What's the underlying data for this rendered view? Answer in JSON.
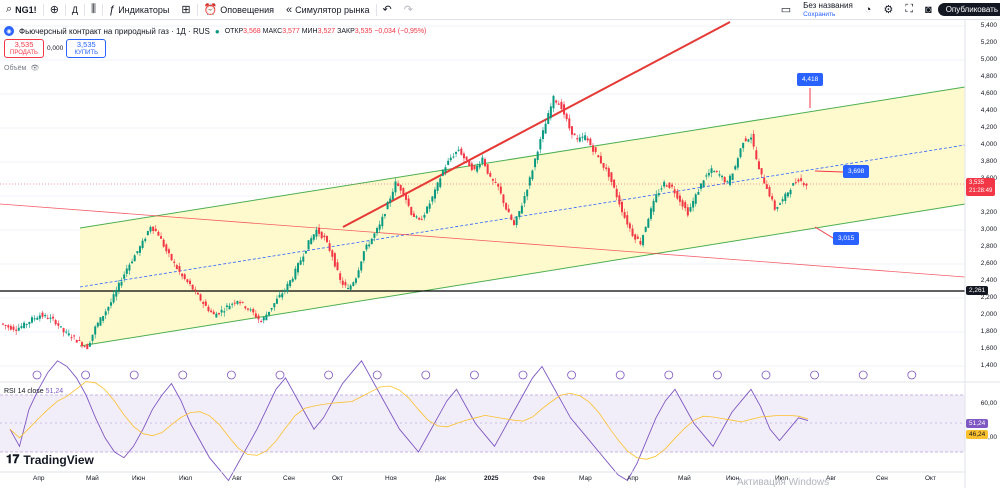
{
  "toolbar": {
    "symbol": "NG1!",
    "add_icon": "plus-circle-icon",
    "timeframe": "Д",
    "indicators": "Индикаторы",
    "alerts": "Оповещения",
    "replay": "Симулятор рынка",
    "save_title": "Без названия",
    "save_sub": "Сохранить",
    "publish": "Опубликовать"
  },
  "legend": {
    "title": "Фьючерсный контракт на природный газ · 1Д · RUS",
    "open_label": "ОТКР",
    "open": "3,568",
    "high_label": "МАКС",
    "high": "3,577",
    "low_label": "МИН",
    "low": "3,527",
    "close_label": "ЗАКР",
    "close": "3,535",
    "change": "−0,034 (−0,95%)"
  },
  "trade": {
    "sell_price": "3,535",
    "sell_label": "ПРОДАТЬ",
    "spread": "0,000",
    "buy_price": "3,535",
    "buy_label": "КУПИТЬ"
  },
  "volume_label": "Объём",
  "price_axis": [
    "5,400",
    "5,200",
    "5,000",
    "4,800",
    "4,600",
    "4,400",
    "4,200",
    "4,000",
    "3,800",
    "3,600",
    "3,400",
    "3,200",
    "3,000",
    "2,800",
    "2,600",
    "2,400",
    "2,200",
    "2,000",
    "1,800",
    "1,600",
    "1,400"
  ],
  "current_price": {
    "value": "3,535",
    "countdown": "21:28:49"
  },
  "level_2261": "2,261",
  "callouts": {
    "upper": "4,418",
    "mid": "3,698",
    "lower": "3,015"
  },
  "rsi": {
    "label": "RSI 14 close",
    "value": "51,24",
    "axis": [
      "60,00",
      "40,00"
    ],
    "current": "51,24",
    "ma": "46,24"
  },
  "time_axis": [
    "Апр",
    "Май",
    "Июн",
    "Июл",
    "Авг",
    "Сен",
    "Окт",
    "Ноя",
    "Дек",
    "2025",
    "Фев",
    "Мар",
    "Апр",
    "Май",
    "Июн",
    "Июл",
    "Авг",
    "Сен",
    "Окт"
  ],
  "brand": "TradingView",
  "watermark": "Активация Windows",
  "colors": {
    "up": "#089981",
    "down": "#f23645",
    "channel": "#4caf50",
    "rsi": "#7e57c2",
    "blue": "#2962ff"
  },
  "chart_data": {
    "type": "line",
    "series": [
      {
        "values": [
          1.9,
          1.86,
          1.84,
          1.88,
          1.95,
          2.0,
          1.97,
          1.92,
          1.8,
          1.75,
          1.68,
          1.62,
          1.85,
          2.0,
          2.15,
          2.35,
          2.55,
          2.7,
          2.85,
          3.05,
          2.95,
          2.75,
          2.6,
          2.45,
          2.35,
          2.22,
          2.1,
          2.0,
          2.05,
          2.12,
          2.18,
          2.1,
          2.02,
          1.92,
          2.05,
          2.18,
          2.3,
          2.45,
          2.65,
          2.85,
          3.0,
          2.9,
          2.7,
          2.4,
          2.3,
          2.45,
          2.75,
          2.9,
          3.05,
          3.3,
          3.55,
          3.45,
          3.2,
          3.1,
          3.25,
          3.45,
          3.7,
          3.85,
          3.95,
          3.8,
          3.7,
          3.85,
          3.6,
          3.5,
          3.25,
          3.05,
          3.3,
          3.6,
          3.95,
          4.25,
          4.55,
          4.45,
          4.2,
          4.05,
          4.1,
          3.95,
          3.8,
          3.65,
          3.4,
          3.15,
          2.95,
          2.85,
          3.15,
          3.4,
          3.55,
          3.5,
          3.35,
          3.2,
          3.4,
          3.6,
          3.7,
          3.65,
          3.55,
          3.75,
          4.05,
          4.1,
          3.7,
          3.5,
          3.25,
          3.35,
          3.5,
          3.6,
          3.535
        ]
      }
    ],
    "rsi_values": [
      48,
      42,
      55,
      62,
      68,
      72,
      70,
      66,
      60,
      52,
      45,
      40,
      38,
      42,
      48,
      55,
      60,
      64,
      58,
      50,
      44,
      38,
      34,
      30,
      36,
      42,
      48,
      55,
      62,
      66,
      60,
      54,
      48,
      52,
      58,
      64,
      68,
      72,
      66,
      60,
      54,
      48,
      44,
      40,
      46,
      52,
      58,
      62,
      56,
      50,
      46,
      42,
      48,
      54,
      60,
      66,
      70,
      64,
      58,
      52,
      48,
      44,
      40,
      36,
      32,
      30,
      36,
      44,
      52,
      58,
      62,
      56,
      50,
      46,
      42,
      48,
      54,
      58,
      62,
      56,
      48,
      44,
      48,
      52,
      51
    ],
    "ylim": [
      1.4,
      5.4
    ]
  }
}
